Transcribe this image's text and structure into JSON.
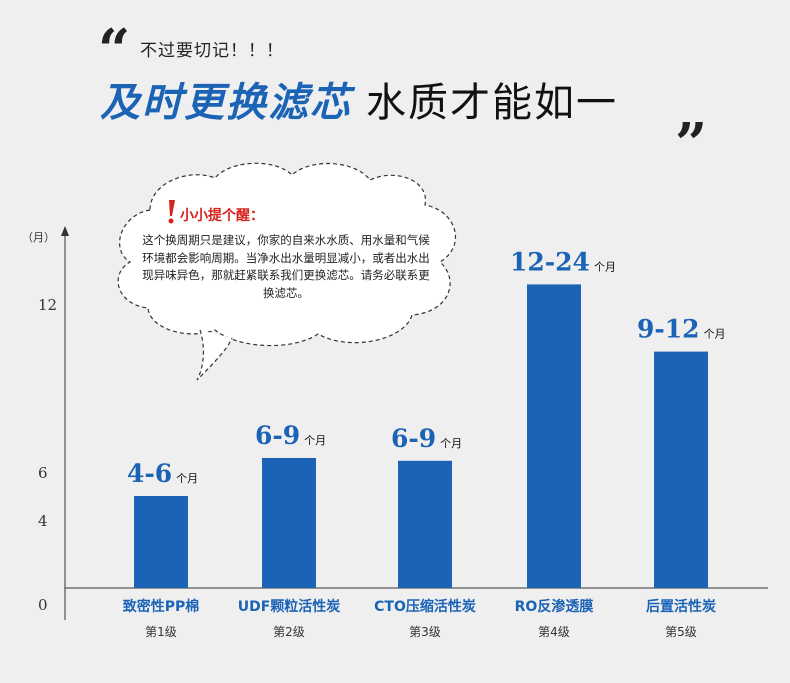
{
  "header": {
    "subtitle": "不过要切记！！！",
    "title_part1": "及时更换滤芯",
    "title_part2": "水质才能如一",
    "quote_open": "“",
    "quote_close": "„"
  },
  "reminder": {
    "heading": "小小提个醒：",
    "body": "这个换周期只是建议，你家的自来水水质、用水量和气候环境都会影响周期。当净水出水量明显减小，或者出水出现异味异色，那就赶紧联系我们更换滤芯。请务必联系更换滤芯。"
  },
  "colors": {
    "bar": "#1b63b5",
    "accent_red": "#d6231e",
    "background": "#efeff0"
  },
  "chart_data": {
    "type": "bar",
    "title": "",
    "xlabel": "",
    "ylabel": "（月）",
    "y_ticks": [
      "0",
      "4",
      "6",
      "12"
    ],
    "categories": [
      "致密性PP棉",
      "UDF颗粒活性炭",
      "CTO压缩活性炭",
      "RO反渗透膜",
      "后置活性炭"
    ],
    "levels": [
      "第1级",
      "第2级",
      "第3级",
      "第4级",
      "第5级"
    ],
    "value_labels": [
      "4-6",
      "6-9",
      "6-9",
      "12-24",
      "9-12"
    ],
    "value_unit": "个月",
    "ranges": [
      [
        4,
        6
      ],
      [
        6,
        9
      ],
      [
        6,
        9
      ],
      [
        12,
        24
      ],
      [
        9,
        12
      ]
    ],
    "bar_display_values": [
      5,
      6.5,
      6.4,
      12.7,
      10.3
    ],
    "grid": false,
    "legend": "none"
  }
}
